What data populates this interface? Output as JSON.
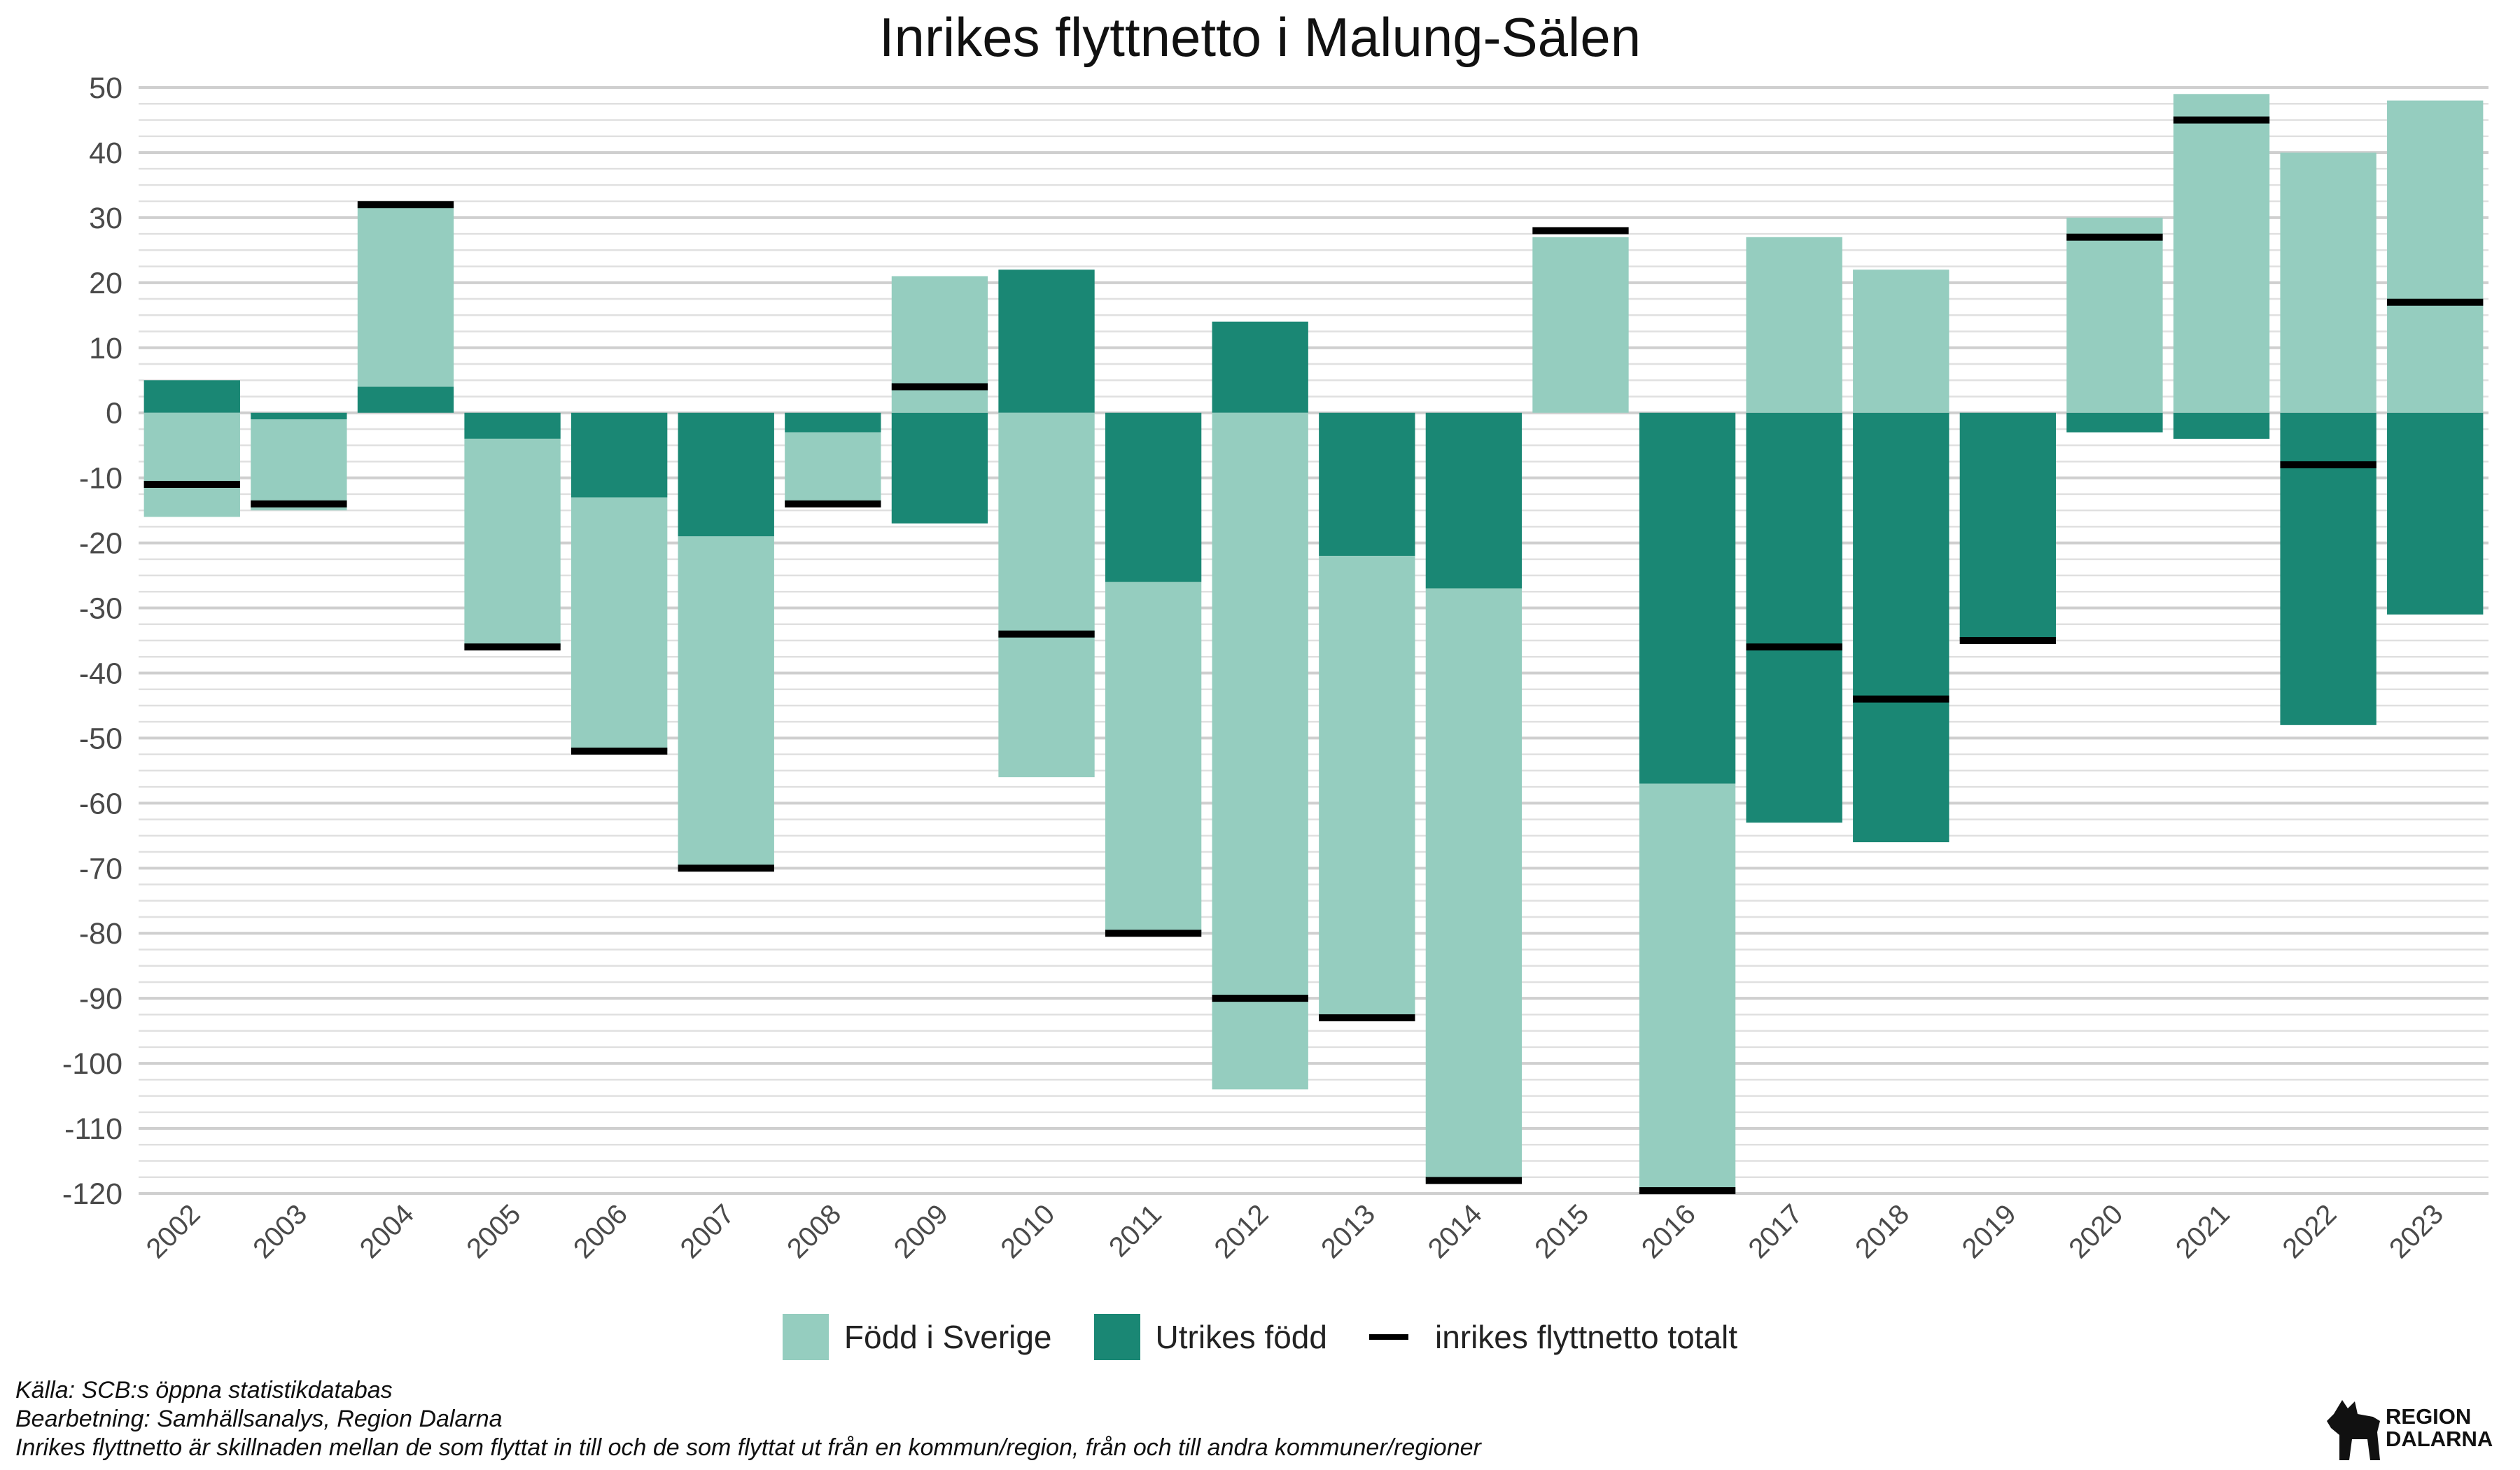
{
  "chart_data": {
    "type": "bar",
    "stacked": true,
    "title": "Inrikes flyttnetto i Malung-Sälen",
    "xlabel": "",
    "ylabel": "",
    "ylim": [
      -120,
      50
    ],
    "yticks": [
      50,
      40,
      30,
      20,
      10,
      0,
      -10,
      -20,
      -30,
      -40,
      -50,
      -60,
      -70,
      -80,
      -90,
      -100,
      -110,
      -120
    ],
    "categories": [
      "2002",
      "2003",
      "2004",
      "2005",
      "2006",
      "2007",
      "2008",
      "2009",
      "2010",
      "2011",
      "2012",
      "2013",
      "2014",
      "2015",
      "2016",
      "2017",
      "2018",
      "2019",
      "2020",
      "2021",
      "2022",
      "2023"
    ],
    "series": [
      {
        "name": "Född i Sverige",
        "color": "#95cdbf",
        "values": [
          -16,
          -14,
          28,
          -32,
          -39,
          -51,
          -11,
          21,
          -56,
          -54,
          -104,
          -71,
          -91,
          27,
          -63,
          27,
          22,
          0,
          30,
          49,
          40,
          48
        ]
      },
      {
        "name": "Utrikes född",
        "color": "#1a8774",
        "values": [
          5,
          -1,
          4,
          -4,
          -13,
          -19,
          -3,
          -17,
          22,
          -26,
          14,
          -22,
          -27,
          0,
          -57,
          -63,
          -66,
          -35,
          -3,
          -4,
          -48,
          -31
        ]
      },
      {
        "name": "inrikes flyttnetto totalt",
        "color": "#000000",
        "type": "line-marker",
        "values": [
          -11,
          -14,
          32,
          -36,
          -52,
          -70,
          -14,
          4,
          -34,
          -80,
          -90,
          -93,
          -118,
          28,
          -120,
          -36,
          -44,
          -35,
          27,
          45,
          -8,
          17
        ]
      }
    ],
    "grid": true,
    "legend_position": "bottom"
  },
  "legend": {
    "items": [
      {
        "label": "Född i Sverige",
        "color": "#95cdbf"
      },
      {
        "label": "Utrikes född",
        "color": "#1a8774"
      },
      {
        "label": "inrikes flyttnetto totalt",
        "color": "#000000"
      }
    ]
  },
  "caption": {
    "source": "Källa: SCB:s öppna statistikdatabas",
    "processing": "Bearbetning: Samhällsanalys, Region Dalarna",
    "note": "Inrikes flyttnetto är skillnaden mellan de som flyttat in till och de som flyttat ut från en kommun/region, från och till andra kommuner/regioner"
  },
  "logo": {
    "line1": "REGION",
    "line2": "DALARNA"
  }
}
